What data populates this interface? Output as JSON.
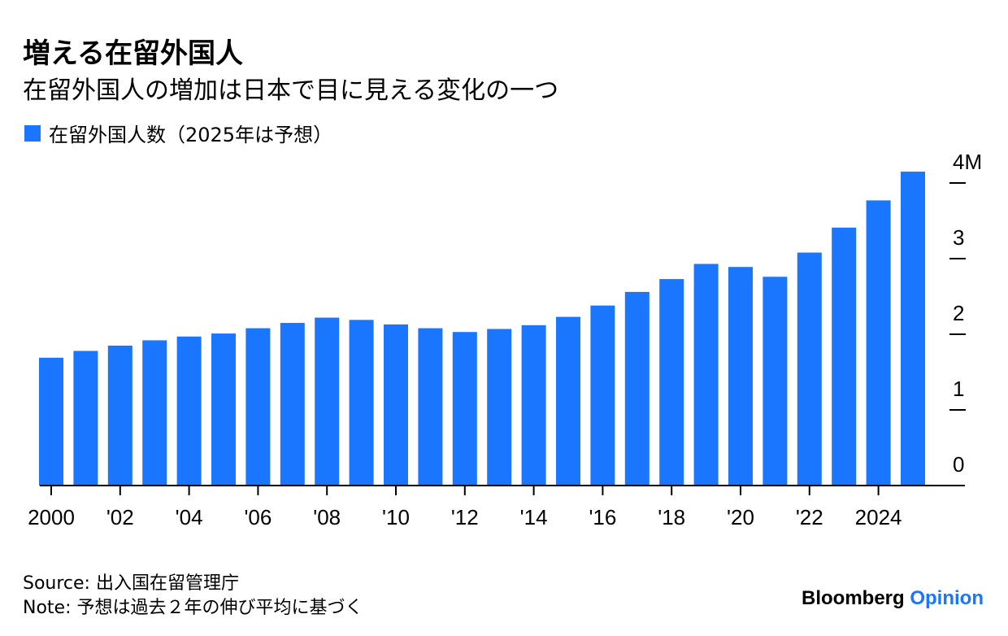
{
  "colors": {
    "bar": "#1a75ff",
    "text": "#000000",
    "axis": "#000000"
  },
  "chart_data": {
    "type": "bar",
    "title": "増える在留外国人",
    "subtitle": "在留外国人の増加は日本で目に見える変化の一つ",
    "legend": [
      {
        "name": "在留外国人数（2025年は予想）",
        "color": "#1a75ff"
      }
    ],
    "categories": [
      "2000",
      "2001",
      "2002",
      "2003",
      "2004",
      "2005",
      "2006",
      "2007",
      "2008",
      "2009",
      "2010",
      "2011",
      "2012",
      "2013",
      "2014",
      "2015",
      "2016",
      "2017",
      "2018",
      "2019",
      "2020",
      "2021",
      "2022",
      "2023",
      "2024",
      "2025"
    ],
    "values": [
      1.69,
      1.78,
      1.85,
      1.92,
      1.97,
      2.01,
      2.08,
      2.15,
      2.22,
      2.19,
      2.13,
      2.08,
      2.03,
      2.07,
      2.12,
      2.23,
      2.38,
      2.56,
      2.73,
      2.93,
      2.89,
      2.76,
      3.08,
      3.41,
      3.77,
      4.15
    ],
    "unit": "M",
    "ylim": [
      0,
      4
    ],
    "y_ticks": [
      {
        "value": 0,
        "label": "0"
      },
      {
        "value": 1,
        "label": "1"
      },
      {
        "value": 2,
        "label": "2"
      },
      {
        "value": 3,
        "label": "3"
      },
      {
        "value": 4,
        "label": "4M"
      }
    ],
    "x_ticks": [
      {
        "index": 0,
        "label": "2000"
      },
      {
        "index": 2,
        "label": "'02"
      },
      {
        "index": 4,
        "label": "'04"
      },
      {
        "index": 6,
        "label": "'06"
      },
      {
        "index": 8,
        "label": "'08"
      },
      {
        "index": 10,
        "label": "'10"
      },
      {
        "index": 12,
        "label": "'12"
      },
      {
        "index": 14,
        "label": "'14"
      },
      {
        "index": 16,
        "label": "'16"
      },
      {
        "index": 18,
        "label": "'18"
      },
      {
        "index": 20,
        "label": "'20"
      },
      {
        "index": 22,
        "label": "'22"
      },
      {
        "index": 24,
        "label": "2024"
      }
    ],
    "grid": false,
    "legend_position": "top-left",
    "y_axis_position": "right"
  },
  "footer": {
    "source": "Source: 出入国在留管理庁",
    "note": "Note: 予想は過去２年の伸び平均に基づく"
  },
  "brand": {
    "name": "Bloomberg",
    "section": "Opinion"
  }
}
